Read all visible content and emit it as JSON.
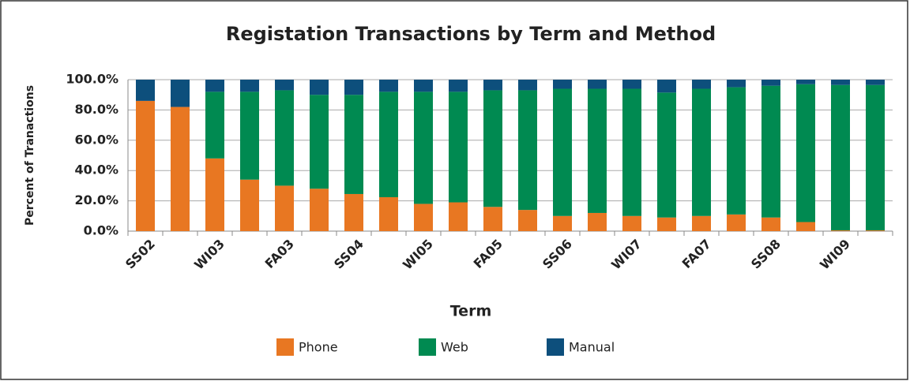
{
  "chart_data": {
    "type": "stacked_bar",
    "title": "Registation Transactions by Term and Method",
    "x_label": "Term",
    "y_label": "Percent of Tranactions",
    "categories": [
      "SS02",
      null,
      "WI03",
      null,
      "FA03",
      null,
      "SS04",
      null,
      "WI05",
      null,
      "FA05",
      null,
      "SS06",
      null,
      "WI07",
      null,
      "FA07",
      null,
      "SS08",
      null,
      "WI09",
      null
    ],
    "series": [
      {
        "name": "Phone",
        "color": "#e87722",
        "values": [
          86,
          82,
          48,
          34,
          30,
          28,
          24.5,
          22.4,
          18,
          19,
          16,
          14,
          10,
          12,
          10,
          9,
          10,
          11,
          9,
          6,
          0.5,
          0.5
        ]
      },
      {
        "name": "Web",
        "color": "#008a51",
        "values": [
          0,
          0,
          44,
          58,
          63,
          62,
          65.5,
          69.6,
          74,
          73,
          77,
          79,
          84,
          82,
          84,
          82.5,
          84,
          84,
          87,
          91,
          96,
          96
        ]
      },
      {
        "name": "Manual",
        "color": "#0d4f7c",
        "values": [
          14,
          18,
          8,
          8,
          7,
          10,
          10,
          8,
          8,
          8,
          7,
          7,
          6,
          6,
          6,
          8.5,
          6,
          5,
          4,
          3,
          3.5,
          3.5
        ]
      }
    ],
    "ylim": [
      0,
      100
    ],
    "yticks": [
      {
        "value": 0,
        "label": "0.0%"
      },
      {
        "value": 20,
        "label": "20.0%"
      },
      {
        "value": 40,
        "label": "40.0%"
      },
      {
        "value": 60,
        "label": "60.0%"
      },
      {
        "value": 80,
        "label": "80.0%"
      },
      {
        "value": 100,
        "label": "100.0%"
      }
    ],
    "grid": true,
    "legend": "bottom"
  }
}
